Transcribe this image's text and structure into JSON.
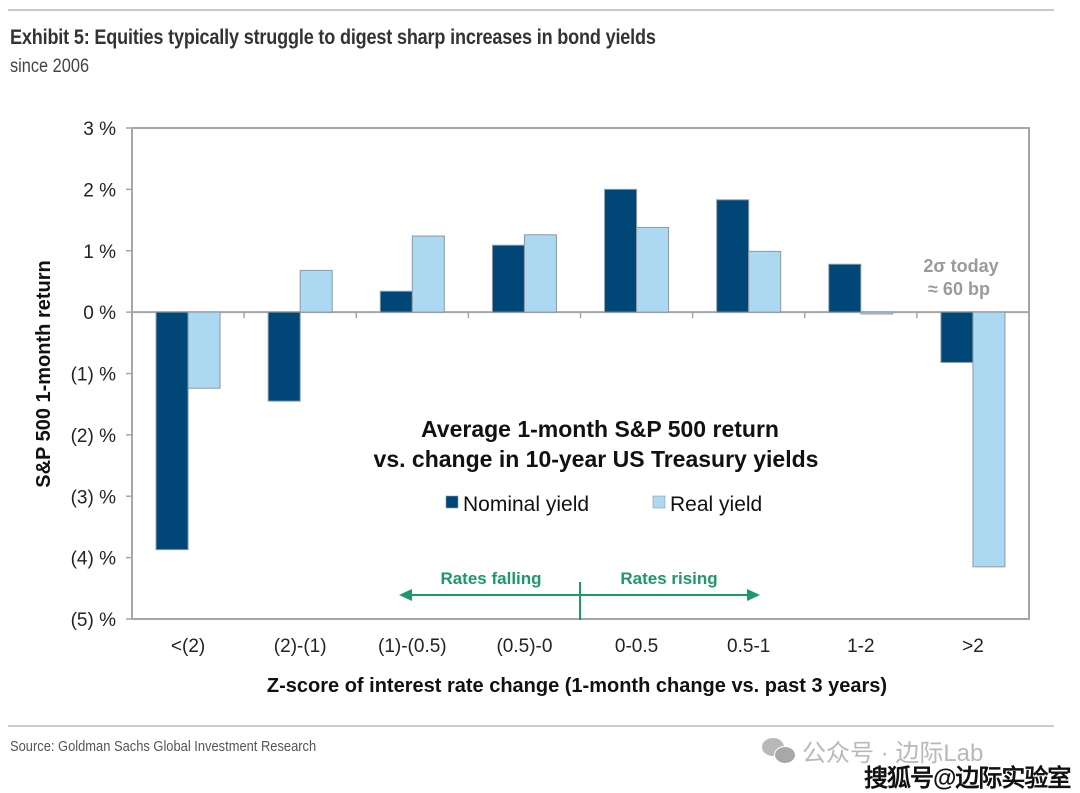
{
  "header": {
    "title": "Exhibit 5: Equities typically struggle to digest sharp increases in bond yields",
    "subtitle": "since 2006"
  },
  "footer": {
    "source": "Source: Goldman Sachs Global Investment Research",
    "watermark_1": "公众号 · 边际Lab",
    "watermark_2": "搜狐号@边际实验室"
  },
  "chart_data": {
    "type": "bar",
    "title": "Average 1-month S&P 500 return vs. change in 10-year US Treasury yields",
    "title_lines": [
      "Average 1-month S&P 500 return",
      "vs. change in 10-year US Treasury yields"
    ],
    "xlabel": "Z-score of interest rate change (1-month change vs. past 3 years)",
    "ylabel": "S&P 500 1-month return",
    "ylim": [
      -5,
      3
    ],
    "yticks": [
      3,
      2,
      1,
      0,
      -1,
      -2,
      -3,
      -4,
      -5
    ],
    "ytick_labels": [
      "3 %",
      "2 %",
      "1 %",
      "0 %",
      "(1) %",
      "(2) %",
      "(3) %",
      "(4) %",
      "(5) %"
    ],
    "categories": [
      "<(2)",
      "(2)-(1)",
      "(1)-(0.5)",
      "(0.5)-0",
      "0-0.5",
      "0.5-1",
      "1-2",
      ">2"
    ],
    "series": [
      {
        "name": "Nominal yield",
        "color": "#004677",
        "values": [
          -3.87,
          -1.45,
          0.34,
          1.09,
          2.0,
          1.83,
          0.78,
          -0.82
        ]
      },
      {
        "name": "Real yield",
        "color": "#acd8f2",
        "values": [
          -1.24,
          0.68,
          1.24,
          1.26,
          1.38,
          0.99,
          -0.03,
          -4.15
        ]
      }
    ],
    "legend": {
      "placement": "center",
      "entries": [
        "Nominal yield",
        "Real yield"
      ]
    },
    "grid": false,
    "annotations": {
      "rates_falling": "Rates falling",
      "rates_rising": "Rates rising",
      "today_line1": "2σ today",
      "today_line2": "≈ 60 bp",
      "arrow_color": "#1a9a6a",
      "today_color": "#9a9a9a"
    }
  }
}
